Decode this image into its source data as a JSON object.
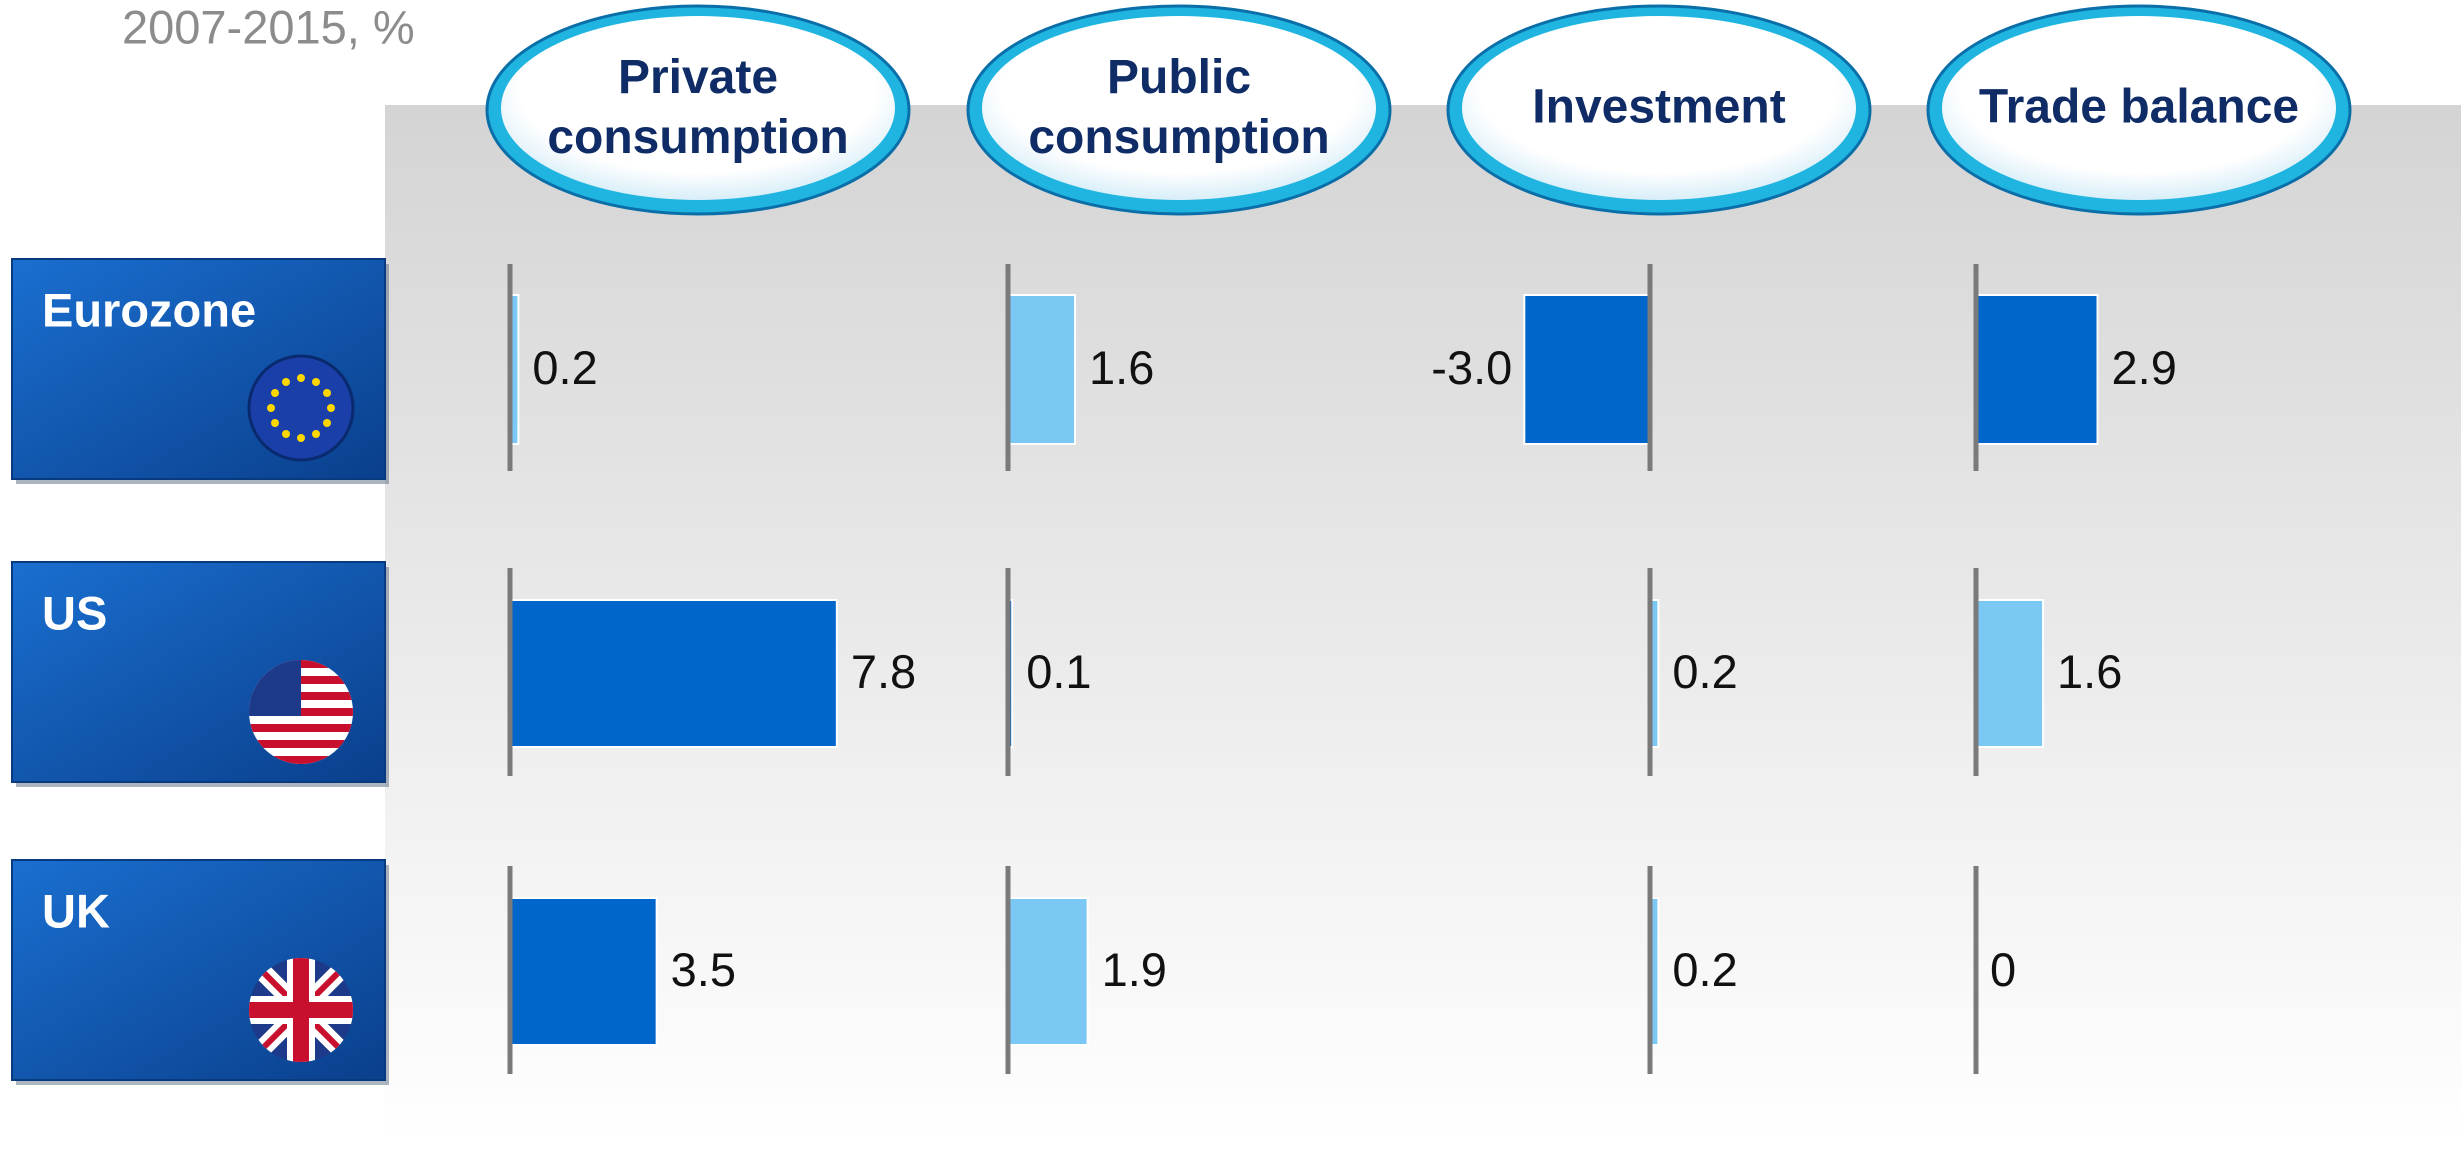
{
  "chart_data": {
    "type": "bar",
    "subtitle": "2007-2015, %",
    "categories": [
      "Eurozone",
      "US",
      "UK"
    ],
    "series": [
      {
        "name": "Private consumption",
        "colors": [
          "#7cc8f5",
          "#0066cc",
          "#0066cc"
        ],
        "values": [
          0.2,
          7.8,
          3.5
        ]
      },
      {
        "name": "Public consumption",
        "colors": [
          "#7cc8f5",
          "#0066cc",
          "#7cc8f5"
        ],
        "values": [
          1.6,
          0.1,
          1.9
        ]
      },
      {
        "name": "Investment",
        "colors": [
          "#0066cc",
          "#7cc8f5",
          "#7cc8f5"
        ],
        "values": [
          -3.0,
          0.2,
          0.2
        ],
        "value_labels": [
          "-3.0",
          "0.2",
          "0.2"
        ]
      },
      {
        "name": "Trade balance",
        "colors": [
          "#0066cc",
          "#7cc8f5",
          "#7cc8f5"
        ],
        "values": [
          2.9,
          1.6,
          0
        ]
      }
    ]
  }
}
